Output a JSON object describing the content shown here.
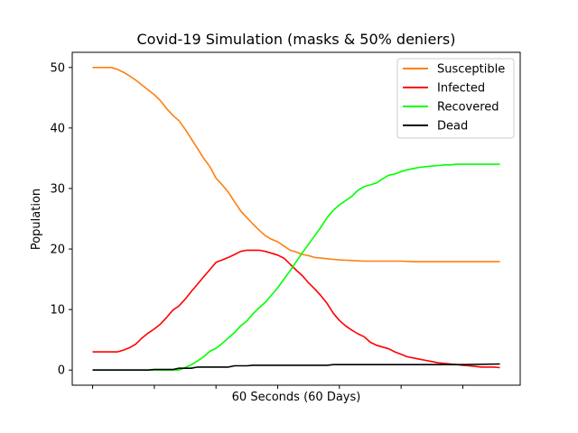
{
  "chart_data": {
    "type": "line",
    "title": "Covid-19 Simulation (masks & 50% deniers)",
    "xlabel": "60 Seconds (60 Days)",
    "ylabel": "Population",
    "xlim": [
      -3.3,
      69.3
    ],
    "ylim": [
      -2.5,
      52.5
    ],
    "yticks": [
      0,
      10,
      20,
      30,
      40,
      50
    ],
    "xticks": [
      0,
      10,
      20,
      30,
      40,
      50,
      60
    ],
    "legend_position": "top-right",
    "grid": false,
    "series": [
      {
        "name": "Susceptible",
        "color": "#ff7f0e",
        "x": [
          0,
          2,
          3,
          4,
          5,
          6,
          7,
          8,
          9,
          10,
          11,
          12,
          13,
          14,
          15,
          16,
          17,
          18,
          19,
          20,
          21,
          22,
          23,
          24,
          25,
          26,
          27,
          28,
          29,
          30,
          31,
          32,
          33,
          34,
          35,
          36,
          37,
          38,
          39,
          40,
          42,
          44,
          46,
          48,
          50,
          52,
          54,
          56,
          58,
          60,
          62,
          64,
          66
        ],
        "values": [
          50,
          50,
          50,
          49.7,
          49.2,
          48.6,
          47.9,
          47.1,
          46.3,
          45.5,
          44.5,
          43.2,
          42.1,
          41.2,
          39.8,
          38.2,
          36.6,
          35,
          33.6,
          31.7,
          30.6,
          29.4,
          27.8,
          26.3,
          25.2,
          24.1,
          23.1,
          22.2,
          21.6,
          21.2,
          20.5,
          19.8,
          19.5,
          19.1,
          18.9,
          18.6,
          18.5,
          18.4,
          18.3,
          18.2,
          18.1,
          18,
          18,
          18,
          18,
          17.9,
          17.9,
          17.9,
          17.9,
          17.9,
          17.9,
          17.9,
          17.9
        ]
      },
      {
        "name": "Infected",
        "color": "#ff0000",
        "x": [
          0,
          2,
          3,
          4,
          5,
          6,
          7,
          8,
          9,
          10,
          11,
          12,
          13,
          14,
          15,
          16,
          17,
          18,
          19,
          20,
          21,
          22,
          23,
          24,
          25,
          26,
          27,
          28,
          29,
          30,
          31,
          32,
          33,
          34,
          35,
          36,
          37,
          38,
          39,
          40,
          41,
          42,
          43,
          44,
          45,
          46,
          47,
          48,
          49,
          50,
          51,
          52,
          53,
          54,
          55,
          56,
          57,
          58,
          59,
          60,
          61,
          62,
          63,
          64,
          65,
          66
        ],
        "values": [
          3,
          3,
          3,
          3,
          3.3,
          3.7,
          4.3,
          5.3,
          6.1,
          6.8,
          7.6,
          8.7,
          9.9,
          10.6,
          11.7,
          13,
          14.2,
          15.4,
          16.6,
          17.8,
          18.2,
          18.6,
          19.1,
          19.6,
          19.8,
          19.8,
          19.8,
          19.6,
          19.3,
          19,
          18.5,
          17.5,
          16.5,
          15.6,
          14.4,
          13.4,
          12.3,
          11,
          9.4,
          8.2,
          7.3,
          6.6,
          6,
          5.5,
          4.6,
          4.1,
          3.8,
          3.5,
          3,
          2.6,
          2.2,
          2,
          1.8,
          1.6,
          1.4,
          1.2,
          1.1,
          1,
          0.9,
          0.8,
          0.7,
          0.6,
          0.5,
          0.5,
          0.5,
          0.4
        ]
      },
      {
        "name": "Recovered",
        "color": "#00ff00",
        "x": [
          0,
          2,
          4,
          6,
          8,
          10,
          11,
          12,
          13,
          14,
          15,
          16,
          17,
          18,
          19,
          20,
          21,
          22,
          23,
          24,
          25,
          26,
          27,
          28,
          29,
          30,
          31,
          32,
          33,
          34,
          35,
          36,
          37,
          38,
          39,
          40,
          41,
          42,
          43,
          44,
          45,
          46,
          47,
          48,
          49,
          50,
          51,
          52,
          53,
          54,
          55,
          56,
          57,
          58,
          59,
          60,
          61,
          62,
          63,
          64,
          65,
          66
        ],
        "values": [
          0,
          0,
          0,
          0,
          0,
          0,
          0,
          0,
          0,
          0,
          0.4,
          0.9,
          1.5,
          2.2,
          3.1,
          3.6,
          4.4,
          5.3,
          6.2,
          7.3,
          8.1,
          9.3,
          10.3,
          11.2,
          12.4,
          13.6,
          15,
          16.4,
          17.9,
          19.4,
          20.8,
          22.2,
          23.6,
          25.2,
          26.4,
          27.3,
          28,
          28.7,
          29.7,
          30.3,
          30.6,
          30.9,
          31.6,
          32.2,
          32.4,
          32.8,
          33.1,
          33.3,
          33.5,
          33.6,
          33.7,
          33.8,
          33.9,
          33.9,
          34,
          34,
          34,
          34,
          34,
          34,
          34,
          34
        ]
      },
      {
        "name": "Dead",
        "color": "#000000",
        "x": [
          0,
          5,
          9,
          10,
          13,
          14,
          16,
          17,
          22,
          23,
          25,
          26,
          30,
          35,
          38,
          39,
          45,
          50,
          55,
          60,
          66
        ],
        "values": [
          0,
          0,
          0,
          0.1,
          0.1,
          0.3,
          0.3,
          0.5,
          0.5,
          0.7,
          0.7,
          0.8,
          0.8,
          0.8,
          0.8,
          0.9,
          0.9,
          0.9,
          0.9,
          0.9,
          1
        ]
      }
    ]
  }
}
